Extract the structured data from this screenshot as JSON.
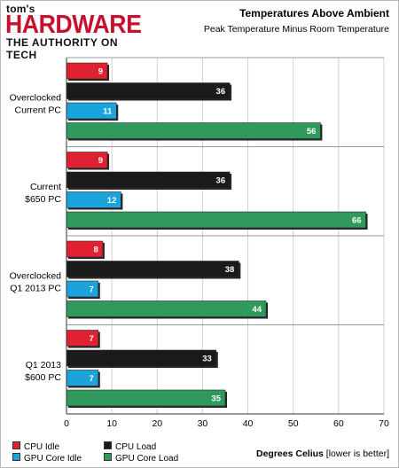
{
  "brand": {
    "small": "tom's",
    "name": "HARDWARE",
    "tagline": "THE AUTHORITY ON TECH"
  },
  "header": {
    "title": "Temperatures Above Ambient",
    "subtitle": "Peak Temperature Minus Room Temperature"
  },
  "xaxis": {
    "label_bold": "Degrees Celius",
    "label_note": " [lower is better]"
  },
  "colors": {
    "cpu_idle": "#e02132",
    "cpu_load": "#1a1a1a",
    "gpu_idle": "#1ba4dc",
    "gpu_load": "#2f9a5c"
  },
  "chart_data": {
    "type": "bar",
    "orientation": "horizontal",
    "categories": [
      "Overclocked Current PC",
      "Current $650 PC",
      "Overclocked Q1 2013 PC",
      "Q1 2013 $600 PC"
    ],
    "category_lines": [
      [
        "Overclocked",
        "Current PC"
      ],
      [
        "Current",
        "$650 PC"
      ],
      [
        "Overclocked",
        "Q1 2013 PC"
      ],
      [
        "Q1 2013",
        "$600 PC"
      ]
    ],
    "series": [
      {
        "name": "CPU Idle",
        "color": "#e02132",
        "values": [
          9,
          9,
          8,
          7
        ]
      },
      {
        "name": "CPU Load",
        "color": "#1a1a1a",
        "values": [
          36,
          36,
          38,
          33
        ]
      },
      {
        "name": "GPU Core Idle",
        "color": "#1ba4dc",
        "values": [
          11,
          12,
          7,
          7
        ]
      },
      {
        "name": "GPU Core Load",
        "color": "#2f9a5c",
        "values": [
          56,
          66,
          44,
          35
        ]
      }
    ],
    "title": "Temperatures Above Ambient",
    "subtitle": "Peak Temperature Minus Room Temperature",
    "xlabel": "Degrees Celius [lower is better]",
    "xlim": [
      0,
      70
    ],
    "xticks": [
      0,
      10,
      20,
      30,
      40,
      50,
      60,
      70
    ],
    "grid": true,
    "legend_position": "bottom-left"
  }
}
